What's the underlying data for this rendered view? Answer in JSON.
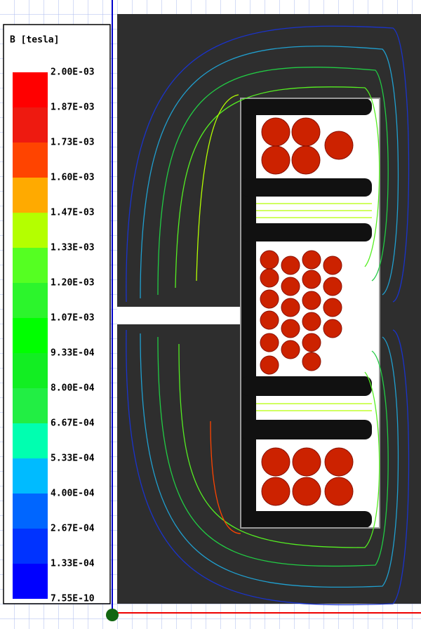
{
  "legend": {
    "title": "B [tesla]",
    "labels": [
      "2.00E-03",
      "1.87E-03",
      "1.73E-03",
      "1.60E-03",
      "1.47E-03",
      "1.33E-03",
      "1.20E-03",
      "1.07E-03",
      "9.33E-04",
      "8.00E-04",
      "6.67E-04",
      "5.33E-04",
      "4.00E-04",
      "2.67E-04",
      "1.33E-04",
      "7.55E-10"
    ],
    "colors": [
      "#ff0000",
      "#ee1a10",
      "#ff4400",
      "#ffaa00",
      "#b4ff00",
      "#55ff22",
      "#2cf52c",
      "#00ff00",
      "#12ee22",
      "#22ee44",
      "#00ffb0",
      "#00bbff",
      "#0066ff",
      "#0033ff",
      "#0000ff"
    ]
  }
}
